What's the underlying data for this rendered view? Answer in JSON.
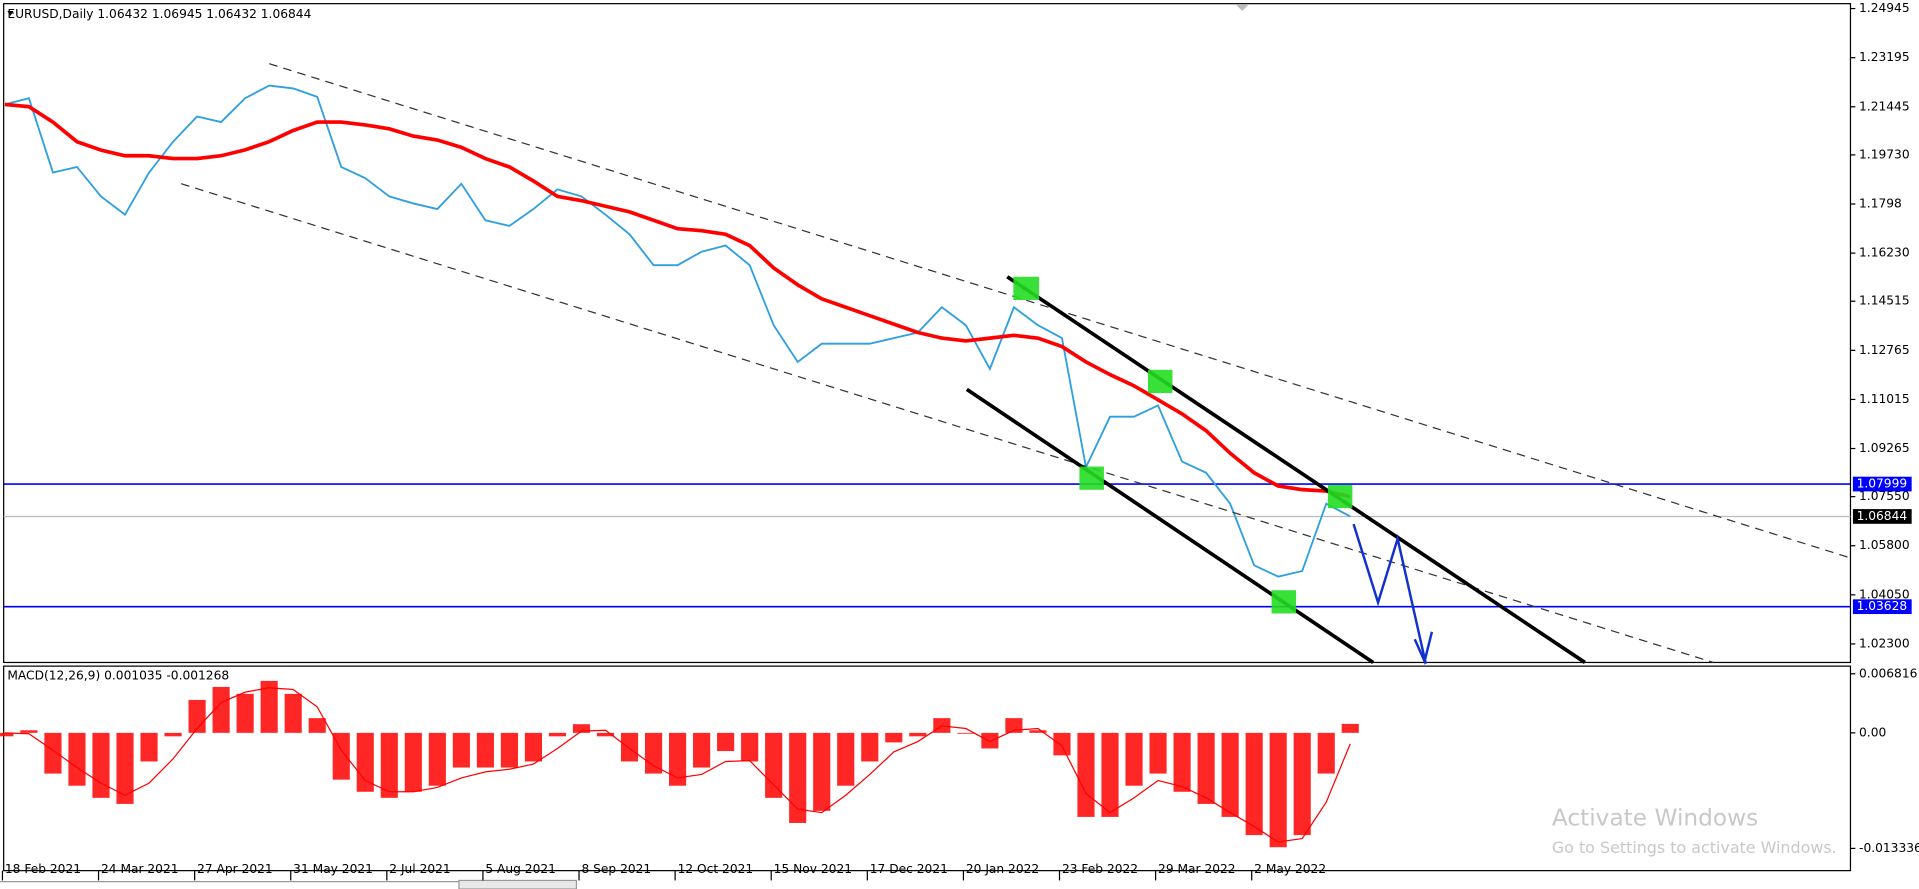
{
  "chart_data": [
    {
      "type": "line",
      "title": "EURUSD,Daily 1.06432 1.06945 1.06432 1.06844",
      "categories": [
        "18 Feb 2021",
        null,
        null,
        null,
        "24 Mar 2021",
        null,
        null,
        null,
        "27 Apr 2021",
        null,
        null,
        null,
        "31 May 2021",
        null,
        null,
        null,
        "2 Jul 2021",
        null,
        null,
        null,
        "5 Aug 2021",
        null,
        null,
        null,
        "8 Sep 2021",
        null,
        null,
        null,
        "12 Oct 2021",
        null,
        null,
        null,
        "15 Nov 2021",
        null,
        null,
        null,
        "17 Dec 2021",
        null,
        null,
        null,
        "20 Jan 2022",
        null,
        null,
        null,
        "23 Feb 2022",
        null,
        null,
        null,
        "29 Mar 2022",
        null,
        null,
        null,
        "2 May 2022",
        null,
        null,
        null,
        null
      ],
      "series": [
        {
          "color": "#2e9fe0",
          "values": [
            1.2153,
            1.2175,
            1.191,
            1.193,
            1.1825,
            1.176,
            1.191,
            1.202,
            1.211,
            1.209,
            1.2175,
            1.222,
            1.221,
            1.218,
            1.193,
            1.189,
            1.1825,
            1.18,
            1.178,
            1.187,
            1.174,
            1.172,
            1.178,
            1.185,
            1.1825,
            1.176,
            1.169,
            1.158,
            1.158,
            1.1628,
            1.165,
            1.158,
            1.1366,
            1.1235,
            1.13,
            1.13,
            1.13,
            1.132,
            1.134,
            1.143,
            1.1366,
            1.121,
            1.143,
            1.1366,
            1.132,
            1.086,
            1.104,
            1.104,
            1.108,
            1.088,
            1.084,
            1.073,
            1.051,
            1.047,
            1.049,
            1.073,
            1.06844
          ]
        },
        {
          "color": "#ff0000",
          "values": [
            1.2153,
            1.2145,
            1.209,
            1.202,
            1.199,
            1.197,
            1.197,
            1.196,
            1.196,
            1.197,
            1.1991,
            1.202,
            1.206,
            1.209,
            1.209,
            1.208,
            1.2066,
            1.204,
            1.2026,
            1.2,
            1.196,
            1.193,
            1.188,
            1.1825,
            1.181,
            1.179,
            1.177,
            1.174,
            1.171,
            1.1703,
            1.169,
            1.165,
            1.157,
            1.151,
            1.146,
            1.143,
            1.14,
            1.137,
            1.134,
            1.132,
            1.131,
            1.132,
            1.133,
            1.132,
            1.129,
            1.1235,
            1.119,
            1.115,
            1.11,
            1.105,
            1.099,
            1.091,
            1.084,
            1.0793,
            1.078,
            1.0775,
            1.0755
          ]
        }
      ],
      "ylim": [
        1.0164,
        1.2512
      ],
      "yticks": [
        1.24945,
        1.23195,
        1.21445,
        {
          "value": 1.1973,
          "label": "1.19730"
        },
        1.1798,
        {
          "value": 1.1623,
          "label": "1.16230"
        },
        1.14515,
        1.12765,
        1.11015,
        1.09265,
        {
          "value": 1.0755,
          "label": "1.07550"
        },
        {
          "value": 1.058,
          "label": "1.05800"
        },
        {
          "value": 1.0405,
          "label": "1.04050"
        },
        {
          "value": 1.023,
          "label": "1.02300"
        }
      ],
      "hlines": [
        {
          "value": 1.07999,
          "color": "#0000ff"
        },
        {
          "value": 1.03628,
          "color": "#0000ff"
        },
        {
          "value": 1.06844,
          "color": "#000000"
        }
      ]
    },
    {
      "type": "bar",
      "title": "MACD(12,26,9) 0.001035 -0.001268",
      "series": [
        {
          "color": "#ff0000",
          "values": [
            -0.0004,
            0.0003,
            -0.0047,
            -0.0061,
            -0.0075,
            -0.0082,
            -0.0033,
            -0.0004,
            0.0038,
            0.0053,
            0.0045,
            0.006,
            0.0045,
            0.0017,
            -0.0054,
            -0.0068,
            -0.0075,
            -0.0068,
            -0.0061,
            -0.004,
            -0.004,
            -0.004,
            -0.0033,
            -0.0004,
            0.001,
            -0.0004,
            -0.0033,
            -0.0047,
            -0.0061,
            -0.004,
            -0.0021,
            -0.0033,
            -0.0075,
            -0.0104,
            -0.009,
            -0.0061,
            -0.0033,
            -0.0011,
            -0.0004,
            0.0017,
            -0.0001,
            -0.0018,
            0.0017,
            0.0003,
            -0.0026,
            -0.0097,
            -0.0097,
            -0.0061,
            -0.0047,
            -0.0068,
            -0.0082,
            -0.0097,
            -0.0118,
            -0.0132,
            -0.0118,
            -0.0047,
            0.001035
          ]
        },
        {
          "type": "line",
          "color": "#ff0000",
          "values": [
            0.0,
            -0.0001,
            -0.002,
            -0.004,
            -0.0058,
            -0.0072,
            -0.0058,
            -0.003,
            0.0005,
            0.0035,
            0.0047,
            0.0052,
            0.005,
            0.003,
            -0.002,
            -0.0055,
            -0.0068,
            -0.0068,
            -0.0063,
            -0.0052,
            -0.0045,
            -0.0042,
            -0.0036,
            -0.0018,
            0.0002,
            0.0003,
            -0.0018,
            -0.0038,
            -0.0052,
            -0.0048,
            -0.0033,
            -0.0032,
            -0.006,
            -0.0088,
            -0.0092,
            -0.0072,
            -0.0048,
            -0.0022,
            -0.001,
            0.0008,
            0.0005,
            -0.001,
            0.0003,
            0.0005,
            -0.0015,
            -0.007,
            -0.0092,
            -0.0075,
            -0.0055,
            -0.0062,
            -0.0075,
            -0.0092,
            -0.0108,
            -0.0126,
            -0.0122,
            -0.008,
            -0.001268
          ]
        }
      ],
      "ylim": [
        -0.0159,
        0.0077
      ],
      "yticks": [
        0.006816,
        {
          "value": 0,
          "label": "0.00"
        },
        -0.013336
      ]
    }
  ],
  "watermark": {
    "title": "Activate Windows",
    "subtitle": "Go to Settings to activate Windows."
  }
}
